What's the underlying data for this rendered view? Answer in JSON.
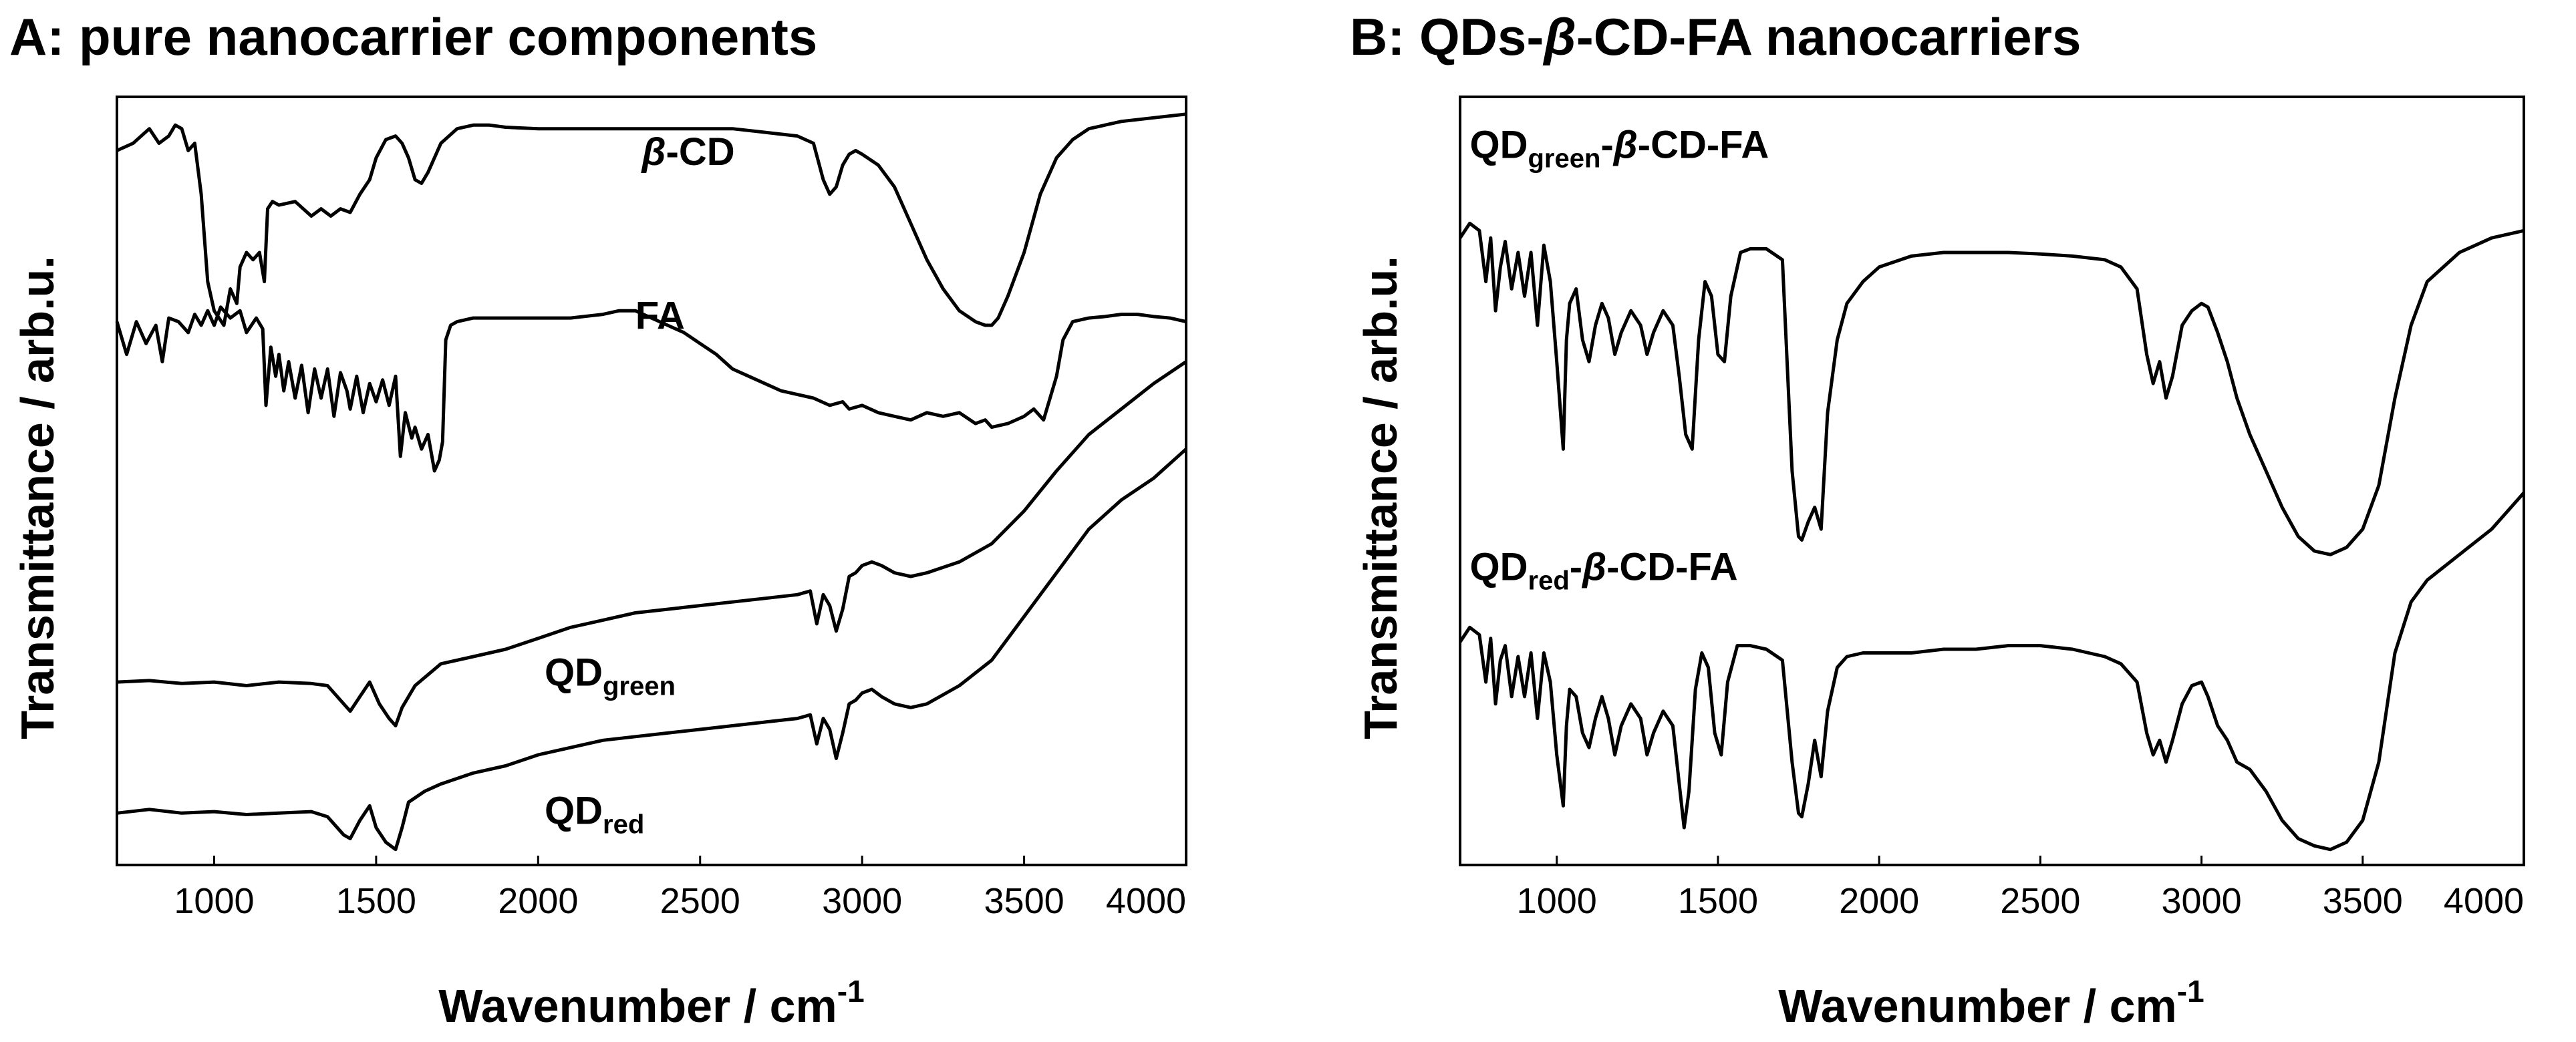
{
  "chart_data": [
    {
      "type": "line",
      "panel": "A",
      "title": "A: pure nanocarrier components",
      "xlabel": "Wavenumber / cm",
      "xlabel_sup": "-1",
      "ylabel": "Transmittance / arb.u.",
      "xlim": [
        700,
        4000
      ],
      "ylim": [
        0,
        10
      ],
      "xticks": [
        "1000",
        "1500",
        "2000",
        "2500",
        "3000",
        "3500",
        "4000"
      ],
      "tick_values": [
        1000,
        1500,
        2000,
        2500,
        3000,
        3500,
        4000
      ],
      "series": [
        {
          "name": "β-CD",
          "label_main": "",
          "label_beta": "β",
          "label_rest": "-CD",
          "label_sub": "",
          "label_at": [
            2320,
            9.2
          ],
          "x": [
            700,
            750,
            800,
            830,
            860,
            880,
            900,
            920,
            940,
            960,
            980,
            1000,
            1030,
            1050,
            1070,
            1080,
            1100,
            1120,
            1140,
            1155,
            1165,
            1180,
            1200,
            1250,
            1300,
            1330,
            1360,
            1390,
            1420,
            1450,
            1480,
            1500,
            1530,
            1560,
            1580,
            1600,
            1620,
            1640,
            1660,
            1700,
            1750,
            1800,
            1850,
            1900,
            2000,
            2100,
            2200,
            2300,
            2400,
            2500,
            2600,
            2700,
            2800,
            2850,
            2880,
            2900,
            2920,
            2940,
            2960,
            2980,
            3000,
            3050,
            3100,
            3150,
            3200,
            3250,
            3300,
            3350,
            3380,
            3400,
            3420,
            3450,
            3500,
            3550,
            3600,
            3650,
            3700,
            3800,
            3900,
            4000
          ],
          "values": [
            9.4,
            9.5,
            9.7,
            9.5,
            9.6,
            9.75,
            9.7,
            9.4,
            9.5,
            8.8,
            7.6,
            7.2,
            7.0,
            7.5,
            7.3,
            7.8,
            8.0,
            7.9,
            8.0,
            7.6,
            8.6,
            8.7,
            8.65,
            8.7,
            8.5,
            8.6,
            8.5,
            8.6,
            8.55,
            8.8,
            9.0,
            9.3,
            9.55,
            9.6,
            9.5,
            9.3,
            9.0,
            8.95,
            9.1,
            9.5,
            9.7,
            9.75,
            9.75,
            9.72,
            9.7,
            9.7,
            9.7,
            9.7,
            9.7,
            9.7,
            9.7,
            9.65,
            9.6,
            9.5,
            9.0,
            8.8,
            8.9,
            9.2,
            9.35,
            9.4,
            9.35,
            9.2,
            8.9,
            8.4,
            7.9,
            7.5,
            7.2,
            7.05,
            7.0,
            7.0,
            7.1,
            7.4,
            8.0,
            8.8,
            9.3,
            9.55,
            9.7,
            9.8,
            9.85,
            9.9
          ]
        },
        {
          "name": "FA",
          "label_main": "FA",
          "label_beta": "",
          "label_rest": "",
          "label_sub": "",
          "label_at": [
            2300,
            6.95
          ],
          "x": [
            700,
            730,
            760,
            790,
            820,
            840,
            860,
            890,
            920,
            940,
            960,
            980,
            1000,
            1020,
            1050,
            1080,
            1100,
            1130,
            1150,
            1160,
            1175,
            1190,
            1200,
            1215,
            1230,
            1250,
            1270,
            1290,
            1310,
            1330,
            1350,
            1370,
            1390,
            1410,
            1420,
            1440,
            1460,
            1480,
            1500,
            1520,
            1540,
            1560,
            1575,
            1590,
            1610,
            1620,
            1640,
            1660,
            1680,
            1695,
            1705,
            1715,
            1730,
            1750,
            1800,
            1850,
            1900,
            2000,
            2100,
            2200,
            2250,
            2300,
            2350,
            2400,
            2450,
            2500,
            2550,
            2600,
            2650,
            2700,
            2750,
            2800,
            2850,
            2900,
            2940,
            2960,
            3000,
            3050,
            3100,
            3150,
            3200,
            3250,
            3300,
            3350,
            3380,
            3400,
            3450,
            3500,
            3530,
            3560,
            3580,
            3600,
            3620,
            3650,
            3700,
            3750,
            3800,
            3850,
            3900,
            3950,
            4000
          ],
          "values": [
            7.05,
            6.6,
            7.05,
            6.75,
            7.0,
            6.5,
            7.1,
            7.05,
            6.9,
            7.15,
            7.0,
            7.2,
            7.0,
            7.25,
            7.1,
            7.2,
            6.9,
            7.1,
            6.95,
            5.9,
            6.7,
            6.3,
            6.6,
            6.1,
            6.5,
            6.0,
            6.45,
            5.8,
            6.4,
            6.0,
            6.4,
            5.75,
            6.35,
            6.1,
            5.85,
            6.3,
            5.8,
            6.2,
            5.95,
            6.25,
            5.9,
            6.3,
            5.2,
            5.8,
            5.45,
            5.6,
            5.3,
            5.5,
            5.0,
            5.15,
            5.4,
            6.8,
            7.0,
            7.05,
            7.1,
            7.1,
            7.1,
            7.1,
            7.1,
            7.15,
            7.2,
            7.2,
            7.1,
            7.0,
            6.9,
            6.75,
            6.6,
            6.4,
            6.3,
            6.2,
            6.1,
            6.05,
            6.0,
            5.9,
            5.95,
            5.85,
            5.9,
            5.8,
            5.75,
            5.7,
            5.8,
            5.75,
            5.8,
            5.65,
            5.7,
            5.6,
            5.65,
            5.75,
            5.85,
            5.7,
            6.0,
            6.3,
            6.8,
            7.05,
            7.1,
            7.12,
            7.15,
            7.15,
            7.12,
            7.1,
            7.05
          ]
        },
        {
          "name": "QDgreen",
          "label_main": "QD",
          "label_beta": "",
          "label_rest": "",
          "label_sub": "green",
          "label_at": [
            2020,
            2.05
          ],
          "x": [
            700,
            800,
            900,
            1000,
            1100,
            1200,
            1300,
            1350,
            1380,
            1420,
            1450,
            1480,
            1510,
            1540,
            1560,
            1580,
            1620,
            1700,
            1800,
            1900,
            2000,
            2100,
            2200,
            2300,
            2400,
            2500,
            2600,
            2700,
            2800,
            2840,
            2860,
            2880,
            2900,
            2920,
            2940,
            2960,
            2980,
            3000,
            3030,
            3060,
            3100,
            3150,
            3200,
            3300,
            3400,
            3500,
            3600,
            3700,
            3800,
            3900,
            4000
          ],
          "values": [
            2.1,
            2.12,
            2.08,
            2.1,
            2.05,
            2.1,
            2.08,
            2.05,
            1.9,
            1.7,
            1.9,
            2.1,
            1.8,
            1.6,
            1.5,
            1.75,
            2.05,
            2.35,
            2.45,
            2.55,
            2.7,
            2.85,
            2.95,
            3.05,
            3.1,
            3.15,
            3.2,
            3.25,
            3.3,
            3.35,
            2.9,
            3.3,
            3.15,
            2.8,
            3.1,
            3.55,
            3.6,
            3.7,
            3.75,
            3.7,
            3.6,
            3.55,
            3.6,
            3.75,
            4.0,
            4.45,
            5.0,
            5.5,
            5.85,
            6.2,
            6.5
          ]
        },
        {
          "name": "QDred",
          "label_main": "QD",
          "label_beta": "",
          "label_rest": "",
          "label_sub": "red",
          "label_at": [
            2020,
            0.15
          ],
          "x": [
            700,
            800,
            900,
            1000,
            1100,
            1200,
            1300,
            1350,
            1400,
            1420,
            1450,
            1480,
            1500,
            1530,
            1560,
            1580,
            1600,
            1650,
            1700,
            1800,
            1900,
            2000,
            2100,
            2200,
            2300,
            2400,
            2500,
            2600,
            2700,
            2800,
            2840,
            2860,
            2880,
            2900,
            2920,
            2940,
            2960,
            2980,
            3000,
            3030,
            3060,
            3100,
            3150,
            3200,
            3300,
            3400,
            3500,
            3600,
            3700,
            3800,
            3900,
            4000
          ],
          "values": [
            0.3,
            0.35,
            0.3,
            0.32,
            0.28,
            0.3,
            0.32,
            0.25,
            0.0,
            -0.05,
            0.2,
            0.4,
            0.1,
            -0.1,
            -0.2,
            0.1,
            0.45,
            0.6,
            0.7,
            0.85,
            0.95,
            1.1,
            1.2,
            1.3,
            1.35,
            1.4,
            1.45,
            1.5,
            1.55,
            1.6,
            1.65,
            1.25,
            1.6,
            1.45,
            1.05,
            1.4,
            1.8,
            1.85,
            1.95,
            2.0,
            1.9,
            1.8,
            1.75,
            1.8,
            2.05,
            2.4,
            3.0,
            3.6,
            4.2,
            4.6,
            4.9,
            5.3
          ]
        }
      ]
    },
    {
      "type": "line",
      "panel": "B",
      "title": "B: QDs-β-CD-FA nanocarriers",
      "title_parts": [
        "B: QDs-",
        "β",
        "-CD-FA nanocarriers"
      ],
      "xlabel": "Wavenumber / cm",
      "xlabel_sup": "-1",
      "ylabel": "Transmittance / arb.u.",
      "xlim": [
        700,
        4000
      ],
      "ylim": [
        0,
        10
      ],
      "xticks": [
        "1000",
        "1500",
        "2000",
        "2500",
        "3000",
        "3500",
        "4000"
      ],
      "tick_values": [
        1000,
        1500,
        2000,
        2500,
        3000,
        3500,
        4000
      ],
      "series": [
        {
          "name": "QDgreen-β-CD-FA",
          "label_main": "QD",
          "label_beta": "β",
          "label_rest": "-CD-FA",
          "label_sub": "green",
          "label_at": [
            730,
            9.3
          ],
          "x": [
            700,
            730,
            760,
            780,
            795,
            810,
            825,
            840,
            860,
            880,
            900,
            920,
            940,
            960,
            980,
            1000,
            1020,
            1030,
            1040,
            1060,
            1080,
            1100,
            1120,
            1140,
            1160,
            1180,
            1200,
            1230,
            1260,
            1280,
            1300,
            1330,
            1360,
            1380,
            1400,
            1420,
            1440,
            1460,
            1480,
            1500,
            1520,
            1540,
            1570,
            1600,
            1650,
            1700,
            1730,
            1750,
            1760,
            1780,
            1800,
            1820,
            1840,
            1870,
            1900,
            1950,
            2000,
            2100,
            2200,
            2300,
            2400,
            2500,
            2600,
            2700,
            2750,
            2800,
            2830,
            2850,
            2870,
            2890,
            2910,
            2940,
            2970,
            3000,
            3020,
            3050,
            3080,
            3110,
            3150,
            3200,
            3250,
            3300,
            3350,
            3400,
            3450,
            3500,
            3550,
            3600,
            3650,
            3700,
            3800,
            3900,
            4000
          ],
          "values": [
            8.2,
            8.4,
            8.3,
            7.6,
            8.2,
            7.2,
            7.8,
            8.15,
            7.5,
            8.0,
            7.4,
            8.0,
            7.0,
            8.1,
            7.6,
            6.5,
            5.3,
            6.8,
            7.3,
            7.5,
            6.8,
            6.5,
            7.0,
            7.3,
            7.1,
            6.6,
            6.9,
            7.2,
            7.0,
            6.6,
            6.9,
            7.2,
            7.0,
            6.3,
            5.5,
            5.3,
            6.8,
            7.6,
            7.4,
            6.6,
            6.5,
            7.4,
            8.0,
            8.05,
            8.05,
            7.9,
            5.0,
            4.1,
            4.05,
            4.3,
            4.5,
            4.2,
            5.8,
            6.8,
            7.3,
            7.6,
            7.8,
            7.95,
            8.0,
            8.0,
            8.0,
            7.98,
            7.95,
            7.9,
            7.8,
            7.5,
            6.6,
            6.2,
            6.5,
            6.0,
            6.3,
            7.0,
            7.2,
            7.3,
            7.25,
            6.9,
            6.5,
            6.0,
            5.5,
            5.0,
            4.5,
            4.1,
            3.9,
            3.85,
            3.95,
            4.2,
            4.8,
            6.0,
            7.0,
            7.6,
            8.0,
            8.2,
            8.3
          ]
        },
        {
          "name": "QDred-β-CD-FA",
          "label_main": "QD",
          "label_beta": "β",
          "label_rest": "-CD-FA",
          "label_sub": "red",
          "label_at": [
            730,
            3.5
          ],
          "x": [
            700,
            730,
            760,
            780,
            795,
            810,
            825,
            840,
            860,
            880,
            900,
            920,
            940,
            960,
            980,
            1000,
            1020,
            1030,
            1040,
            1060,
            1080,
            1100,
            1120,
            1140,
            1160,
            1180,
            1200,
            1230,
            1260,
            1280,
            1300,
            1330,
            1360,
            1380,
            1395,
            1410,
            1430,
            1450,
            1470,
            1490,
            1510,
            1530,
            1560,
            1600,
            1650,
            1700,
            1730,
            1750,
            1760,
            1780,
            1800,
            1820,
            1840,
            1870,
            1900,
            1950,
            2000,
            2100,
            2200,
            2300,
            2400,
            2500,
            2600,
            2700,
            2750,
            2800,
            2830,
            2850,
            2870,
            2890,
            2910,
            2940,
            2970,
            3000,
            3020,
            3050,
            3080,
            3110,
            3150,
            3200,
            3250,
            3300,
            3350,
            3400,
            3450,
            3500,
            3550,
            3600,
            3650,
            3700,
            3800,
            3900,
            4000
          ],
          "values": [
            2.65,
            2.85,
            2.75,
            2.1,
            2.7,
            1.8,
            2.4,
            2.6,
            1.9,
            2.45,
            1.9,
            2.5,
            1.6,
            2.5,
            2.1,
            1.1,
            0.4,
            1.5,
            2.0,
            1.9,
            1.4,
            1.2,
            1.6,
            1.9,
            1.6,
            1.1,
            1.5,
            1.8,
            1.6,
            1.1,
            1.4,
            1.7,
            1.5,
            0.7,
            0.1,
            0.6,
            2.0,
            2.5,
            2.3,
            1.4,
            1.1,
            2.1,
            2.6,
            2.6,
            2.55,
            2.4,
            1.0,
            0.3,
            0.25,
            0.7,
            1.3,
            0.8,
            1.7,
            2.3,
            2.45,
            2.5,
            2.5,
            2.5,
            2.55,
            2.55,
            2.6,
            2.6,
            2.55,
            2.45,
            2.35,
            2.1,
            1.4,
            1.1,
            1.3,
            1.0,
            1.3,
            1.8,
            2.05,
            2.1,
            1.9,
            1.5,
            1.3,
            1.0,
            0.9,
            0.6,
            0.2,
            -0.05,
            -0.15,
            -0.2,
            -0.1,
            0.2,
            1.0,
            2.5,
            3.2,
            3.5,
            3.85,
            4.2,
            4.7
          ]
        }
      ]
    }
  ]
}
